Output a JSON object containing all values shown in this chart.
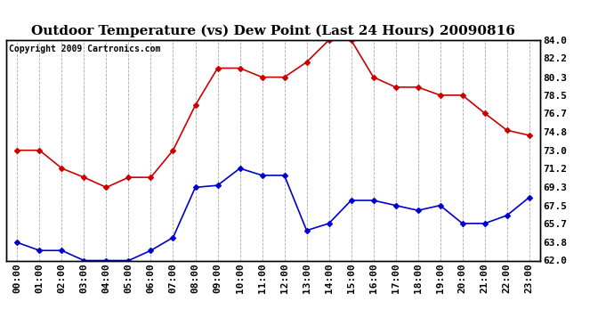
{
  "title": "Outdoor Temperature (vs) Dew Point (Last 24 Hours) 20090816",
  "copyright": "Copyright 2009 Cartronics.com",
  "hours": [
    "00:00",
    "01:00",
    "02:00",
    "03:00",
    "04:00",
    "05:00",
    "06:00",
    "07:00",
    "08:00",
    "09:00",
    "10:00",
    "11:00",
    "12:00",
    "13:00",
    "14:00",
    "15:00",
    "16:00",
    "17:00",
    "18:00",
    "19:00",
    "20:00",
    "21:00",
    "22:00",
    "23:00"
  ],
  "temp": [
    73.0,
    73.0,
    71.2,
    70.3,
    69.3,
    70.3,
    70.3,
    73.0,
    77.5,
    81.2,
    81.2,
    80.3,
    80.3,
    81.8,
    84.0,
    84.0,
    80.3,
    79.3,
    79.3,
    78.5,
    78.5,
    76.7,
    75.0,
    74.5
  ],
  "dew": [
    63.8,
    63.0,
    63.0,
    62.0,
    62.0,
    62.0,
    63.0,
    64.3,
    69.3,
    69.5,
    71.2,
    70.5,
    70.5,
    65.0,
    65.7,
    68.0,
    68.0,
    67.5,
    67.0,
    67.5,
    65.7,
    65.7,
    66.5,
    68.3
  ],
  "temp_color": "#cc0000",
  "dew_color": "#0000cc",
  "bg_color": "#ffffff",
  "grid_color": "#aaaaaa",
  "ylim": [
    62.0,
    84.0
  ],
  "yticks": [
    62.0,
    63.8,
    65.7,
    67.5,
    69.3,
    71.2,
    73.0,
    74.8,
    76.7,
    78.5,
    80.3,
    82.2,
    84.0
  ],
  "title_fontsize": 11,
  "copyright_fontsize": 7,
  "tick_fontsize": 8,
  "marker": "D",
  "markersize": 3
}
